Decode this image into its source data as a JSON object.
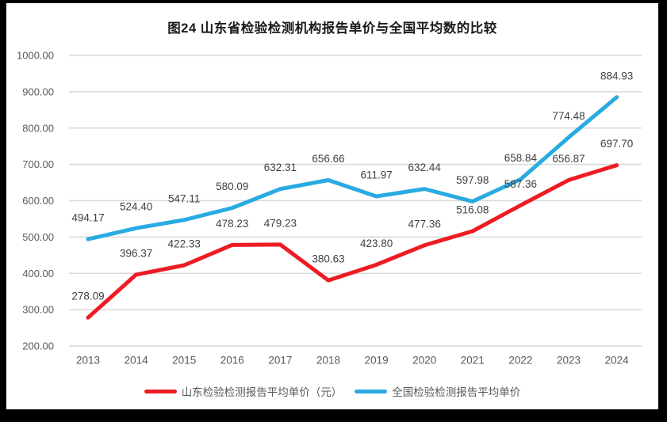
{
  "chart_data": {
    "type": "line",
    "title": "图24  山东省检验检测机构报告单价与全国平均数的比较",
    "categories": [
      "2013",
      "2014",
      "2015",
      "2016",
      "2017",
      "2018",
      "2019",
      "2020",
      "2021",
      "2022",
      "2023",
      "2024"
    ],
    "series": [
      {
        "name": "山东检验检测报告平均单价（元）",
        "color": "#ED1C24",
        "values": [
          278.09,
          396.37,
          422.33,
          478.23,
          479.23,
          380.63,
          423.8,
          477.36,
          516.08,
          587.36,
          656.87,
          697.7
        ]
      },
      {
        "name": "全国检验检测报告平均单价",
        "color": "#29ABE2",
        "values": [
          494.17,
          524.4,
          547.11,
          580.09,
          632.31,
          656.66,
          611.97,
          632.44,
          597.98,
          658.84,
          774.48,
          884.93
        ]
      }
    ],
    "ylim": [
      200,
      1000
    ],
    "ytick_step": 100,
    "ytick_format_decimals": 2,
    "data_labels": true,
    "grid": true,
    "legend_position": "bottom"
  },
  "colors": {
    "frame": "#000000",
    "panel": "#FFFFFF",
    "grid": "#D9D9D9",
    "axis_text": "#595959",
    "label_text": "#404040",
    "title_text": "#1A1A1A"
  }
}
